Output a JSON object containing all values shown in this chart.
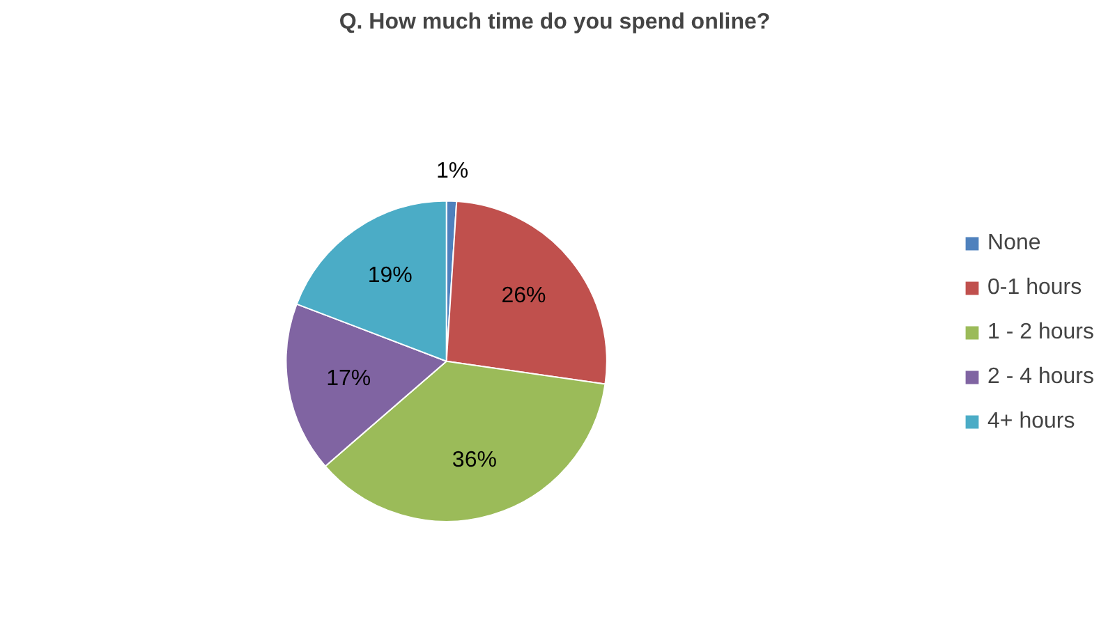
{
  "chart_data": {
    "type": "pie",
    "title": "Q. How much time do you spend online?",
    "categories": [
      "None",
      "0-1 hours",
      "1 - 2 hours",
      "2 - 4 hours",
      "4+ hours"
    ],
    "values": [
      1,
      26,
      36,
      17,
      19
    ],
    "colors": [
      "#4f81bd",
      "#c0504d",
      "#9bbb59",
      "#8064a2",
      "#4bacc6"
    ],
    "value_labels": [
      "1%",
      "26%",
      "36%",
      "17%",
      "19%"
    ],
    "legend": "right"
  }
}
